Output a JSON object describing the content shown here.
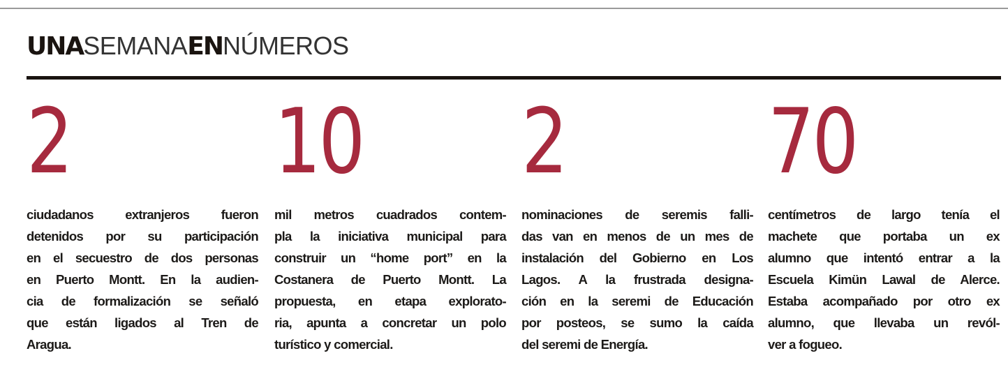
{
  "heading": {
    "part1": "UNA",
    "part2": "SEMANA",
    "part3": "EN",
    "part4": "NÚMEROS"
  },
  "accent_color": "#a62a3e",
  "items": [
    {
      "number": "2",
      "lines": [
        "ciudadanos extranjeros fueron",
        "detenidos por su participación",
        "en el secuestro de dos personas",
        "en Puerto Montt. En la audien-",
        "cia de formalización se señaló",
        "que están ligados al Tren de",
        "Aragua."
      ]
    },
    {
      "number": "10",
      "lines": [
        "mil metros cuadrados contem-",
        "pla la iniciativa municipal para",
        "construir un “home port” en la",
        "Costanera de Puerto Montt. La",
        "propuesta, en etapa explorato-",
        "ria, apunta a concretar un polo",
        "turístico y comercial."
      ]
    },
    {
      "number": "2",
      "lines": [
        "nominaciones de seremis falli-",
        "das van en menos de un mes de",
        "instalación del Gobierno en Los",
        "Lagos. A la frustrada designa-",
        "ción en la seremi de Educación",
        "por posteos, se sumo la caída",
        "del seremi de Energía."
      ]
    },
    {
      "number": "70",
      "lines": [
        "centímetros de largo tenía el",
        "machete que portaba un ex",
        "alumno que intentó entrar a la",
        "Escuela Kimün Lawal de Alerce.",
        "Estaba acompañado por otro ex",
        "alumno, que llevaba un revól-",
        "ver a fogueo."
      ]
    }
  ]
}
